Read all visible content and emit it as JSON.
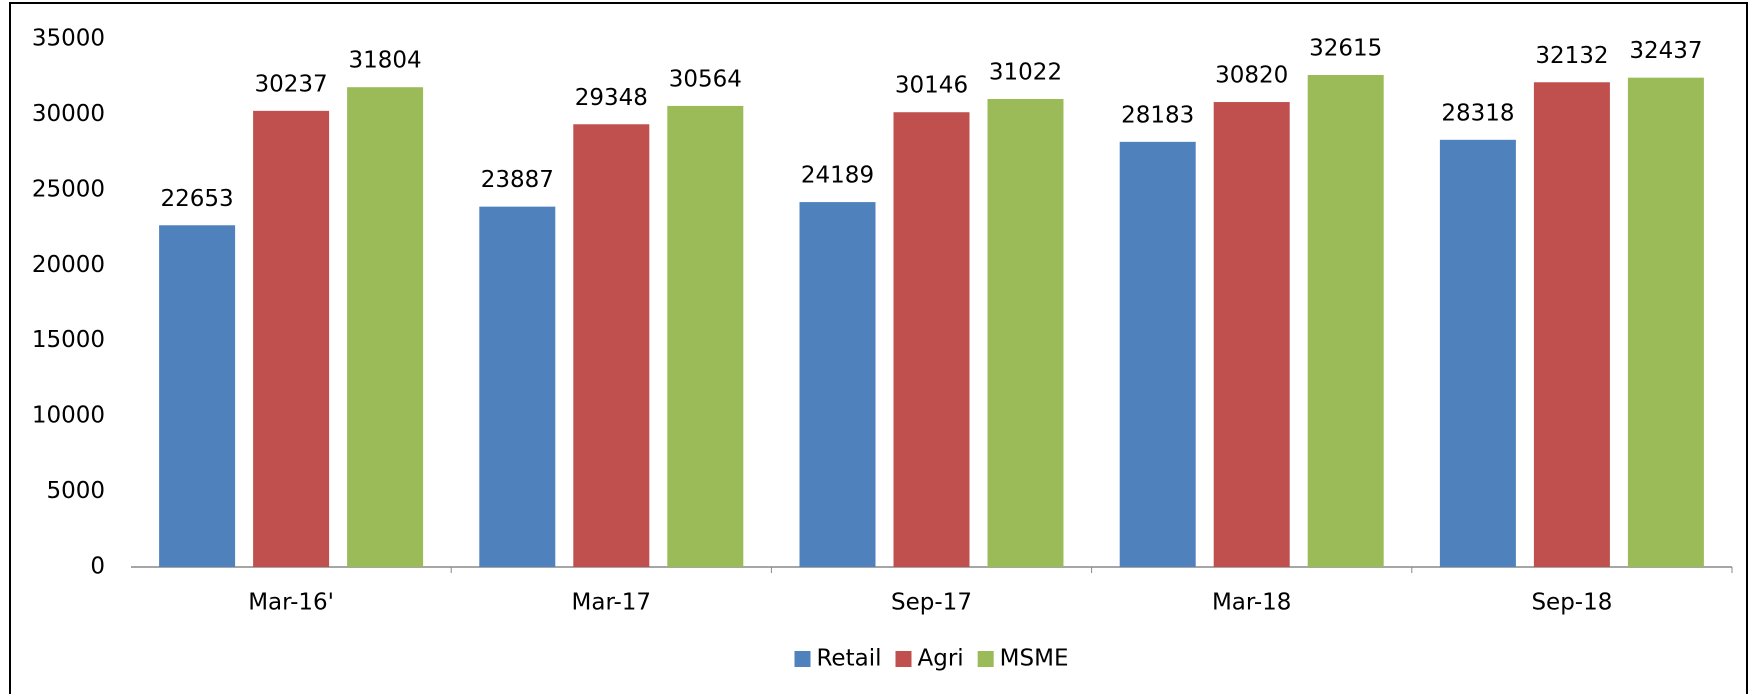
{
  "chart_data": {
    "type": "bar",
    "categories": [
      "Mar-16'",
      "Mar-17",
      "Sep-17",
      "Mar-18",
      "Sep-18"
    ],
    "series": [
      {
        "name": "Retail",
        "color": "#4f81bd",
        "values": [
          22653,
          23887,
          24189,
          28183,
          28318
        ]
      },
      {
        "name": "Agri",
        "color": "#c0504d",
        "values": [
          30237,
          29348,
          30146,
          30820,
          32132
        ]
      },
      {
        "name": "MSME",
        "color": "#9bbb59",
        "values": [
          31804,
          30564,
          31022,
          32615,
          32437
        ]
      }
    ],
    "ylim": [
      0,
      35000
    ],
    "yticks": [
      0,
      5000,
      10000,
      15000,
      20000,
      25000,
      30000,
      35000
    ],
    "grid": false,
    "legend": "bottom"
  }
}
